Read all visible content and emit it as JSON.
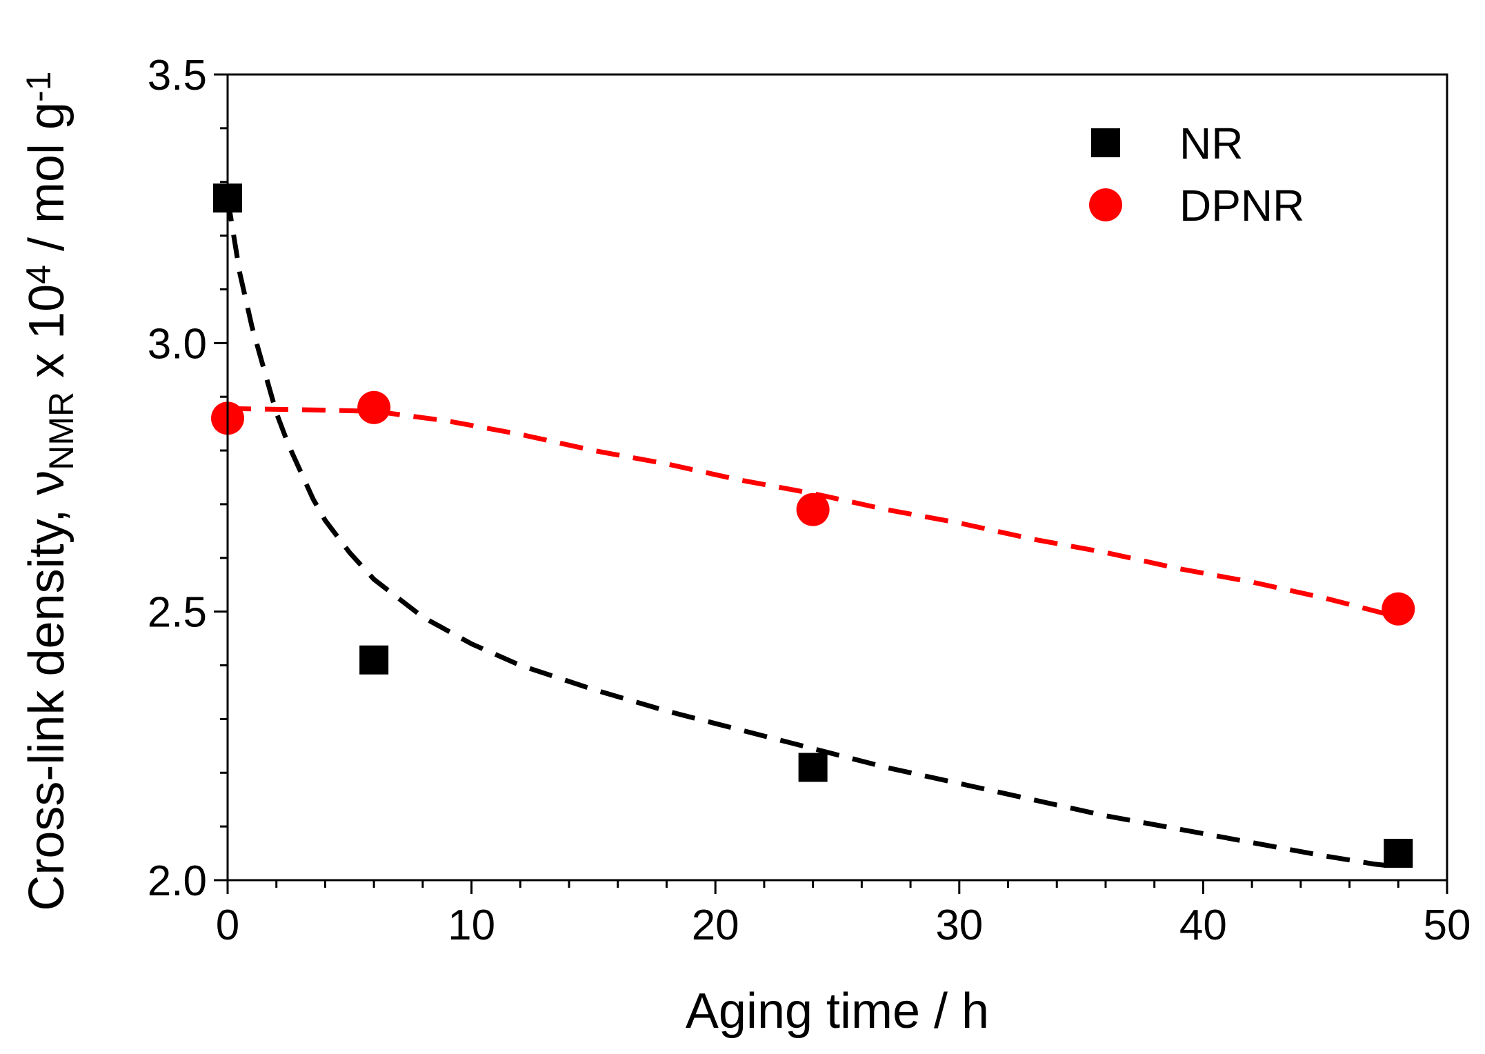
{
  "chart_data": {
    "type": "scatter",
    "title": "",
    "xlabel": "Aging time / h",
    "ylabel": {
      "prefix": "Cross-link density, ",
      "nu": "ν",
      "nu_subscript": "NMR",
      "times": " x 10",
      "power": "4",
      "unit": " / mol g",
      "unit_power": "-1"
    },
    "xlim": [
      0,
      50
    ],
    "ylim": [
      2.0,
      3.5
    ],
    "x_ticks": [
      0,
      10,
      20,
      30,
      40,
      50
    ],
    "x_tick_labels": [
      "0",
      "10",
      "20",
      "30",
      "40",
      "50"
    ],
    "y_ticks": [
      2.0,
      2.5,
      3.0,
      3.5
    ],
    "y_tick_labels": [
      "2.0",
      "2.5",
      "3.0",
      "3.5"
    ],
    "x_minor_step": 2,
    "y_minor_step": 0.1,
    "grid": false,
    "legend_position": "top-right",
    "series": [
      {
        "name": "NR",
        "marker": "square",
        "color": "#000000",
        "x": [
          0,
          6,
          24,
          48
        ],
        "y": [
          3.27,
          2.41,
          2.21,
          2.05
        ],
        "fit": {
          "style": "dashed",
          "x": [
            0,
            0.5,
            1,
            1.5,
            2,
            2.5,
            3,
            3.5,
            4,
            5,
            6,
            8,
            10,
            12,
            15,
            18,
            21,
            24,
            27,
            30,
            33,
            36,
            39,
            42,
            45,
            47,
            48
          ],
          "y": [
            3.27,
            3.13,
            3.03,
            2.95,
            2.87,
            2.81,
            2.76,
            2.71,
            2.67,
            2.61,
            2.56,
            2.49,
            2.44,
            2.4,
            2.355,
            2.315,
            2.28,
            2.245,
            2.21,
            2.18,
            2.15,
            2.12,
            2.095,
            2.07,
            2.045,
            2.03,
            2.025
          ]
        }
      },
      {
        "name": "DPNR",
        "marker": "circle",
        "color": "#ff0000",
        "x": [
          0,
          6,
          24,
          48
        ],
        "y": [
          2.86,
          2.88,
          2.69,
          2.505
        ],
        "fit": {
          "style": "dashed",
          "x": [
            0,
            3,
            6,
            9,
            12,
            15,
            18,
            21,
            24,
            27,
            30,
            33,
            36,
            39,
            42,
            45,
            48
          ],
          "y": [
            2.878,
            2.876,
            2.873,
            2.855,
            2.83,
            2.8,
            2.775,
            2.745,
            2.72,
            2.69,
            2.665,
            2.635,
            2.61,
            2.58,
            2.555,
            2.525,
            2.49
          ]
        }
      }
    ]
  }
}
